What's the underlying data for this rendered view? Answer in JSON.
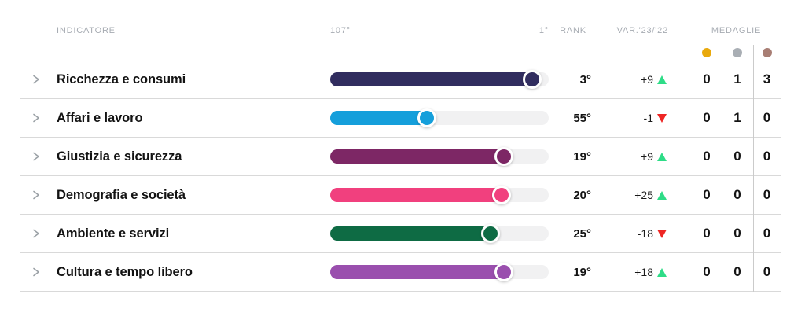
{
  "header": {
    "indicator_label": "INDICATORE",
    "scale_left": "107°",
    "scale_right": "1°",
    "rank_label": "RANK",
    "var_label": "VAR.'23/'22",
    "medals_label": "MEDAGLIE"
  },
  "medal_colors": {
    "gold": "#e9a90c",
    "silver": "#a9aeb4",
    "bronze": "#a87e74"
  },
  "colors": {
    "trend_up": "#2edc87",
    "trend_down": "#ee2624",
    "track": "#f1f1f2",
    "divider": "#d9d9d9",
    "header_text": "#a6abb2"
  },
  "icons": {
    "row_expander": "chevron-right",
    "trend_up": "triangle-up",
    "trend_down": "triangle-down",
    "medals": [
      "gold-dot",
      "silver-dot",
      "bronze-dot"
    ]
  },
  "rows": [
    {
      "label": "Ricchezza e consumi",
      "color": "#312d5f",
      "bar_pct": 96,
      "rank": "3°",
      "var": "+9",
      "trend": "up",
      "medals": {
        "gold": "0",
        "silver": "1",
        "bronze": "3"
      }
    },
    {
      "label": "Affari e lavoro",
      "color": "#159fdb",
      "bar_pct": 48,
      "rank": "55°",
      "var": "-1",
      "trend": "down",
      "medals": {
        "gold": "0",
        "silver": "1",
        "bronze": "0"
      }
    },
    {
      "label": "Giustizia e sicurezza",
      "color": "#7d2765",
      "bar_pct": 83,
      "rank": "19°",
      "var": "+9",
      "trend": "up",
      "medals": {
        "gold": "0",
        "silver": "0",
        "bronze": "0"
      }
    },
    {
      "label": "Demografia e società",
      "color": "#f1407e",
      "bar_pct": 82,
      "rank": "20°",
      "var": "+25",
      "trend": "up",
      "medals": {
        "gold": "0",
        "silver": "0",
        "bronze": "0"
      }
    },
    {
      "label": "Ambiente e servizi",
      "color": "#0e6b44",
      "bar_pct": 77,
      "rank": "25°",
      "var": "-18",
      "trend": "down",
      "medals": {
        "gold": "0",
        "silver": "0",
        "bronze": "0"
      }
    },
    {
      "label": "Cultura e tempo libero",
      "color": "#9a4fae",
      "bar_pct": 83,
      "rank": "19°",
      "var": "+18",
      "trend": "up",
      "medals": {
        "gold": "0",
        "silver": "0",
        "bronze": "0"
      }
    }
  ],
  "chart_data": {
    "type": "bar",
    "title": "",
    "categories": [
      "Ricchezza e consumi",
      "Affari e lavoro",
      "Giustizia e sicurezza",
      "Demografia e società",
      "Ambiente e servizi",
      "Cultura e tempo libero"
    ],
    "series": [
      {
        "name": "rank (1° best, 107° worst)",
        "values": [
          3,
          55,
          19,
          20,
          25,
          19
        ]
      },
      {
        "name": "var '23/'22",
        "values": [
          9,
          -1,
          9,
          25,
          -18,
          18
        ]
      },
      {
        "name": "medaglie oro",
        "values": [
          0,
          0,
          0,
          0,
          0,
          0
        ]
      },
      {
        "name": "medaglie argento",
        "values": [
          1,
          1,
          0,
          0,
          0,
          0
        ]
      },
      {
        "name": "medaglie bronzo",
        "values": [
          3,
          0,
          0,
          0,
          0,
          0
        ]
      }
    ],
    "xlabel": "",
    "ylabel": "",
    "axis_range_labels": [
      "107°",
      "1°"
    ],
    "axis_range": [
      107,
      1
    ],
    "legend_position": "none",
    "grid": false
  }
}
